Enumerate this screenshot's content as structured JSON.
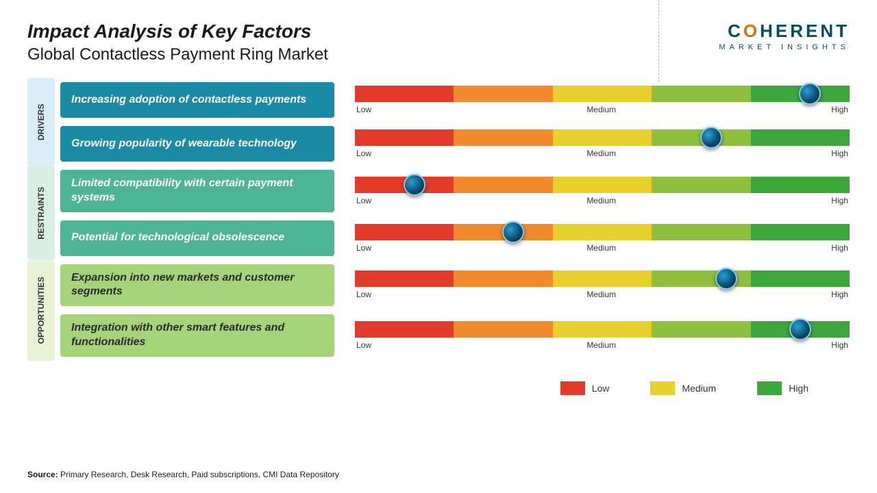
{
  "title": "Impact Analysis of Key Factors",
  "subtitle": "Global Contactless Payment Ring Market",
  "logo": {
    "brand": "COHERENT",
    "tagline": "MARKET INSIGHTS"
  },
  "scale": {
    "segment_colors": [
      "#e23b2b",
      "#f08a2c",
      "#e8d02e",
      "#8fbf3f",
      "#3da63d"
    ],
    "labels": {
      "low": "Low",
      "medium": "Medium",
      "high": "High"
    },
    "marker_color": "#0c5a80"
  },
  "categories": [
    {
      "name": "DRIVERS",
      "label_bg": "#d9eef6",
      "factor_bg": "#1b8aa5",
      "factor_text": "#ffffff",
      "rows": [
        {
          "text": "Increasing adoption of contactless payments",
          "marker_pct": 92
        },
        {
          "text": "Growing popularity of wearable technology",
          "marker_pct": 72
        }
      ]
    },
    {
      "name": "RESTRAINTS",
      "label_bg": "#d9efe5",
      "factor_bg": "#4db593",
      "factor_text": "#ffffff",
      "rows": [
        {
          "text": "Limited compatibility with certain payment systems",
          "marker_pct": 12
        },
        {
          "text": "Potential for technological obsolescence",
          "marker_pct": 32
        }
      ]
    },
    {
      "name": "OPPORTUNITIES",
      "label_bg": "#e8f3d6",
      "factor_bg": "#a6d47a",
      "factor_text": "#2a2a2a",
      "rows": [
        {
          "text": "Expansion into new markets and customer segments",
          "marker_pct": 75
        },
        {
          "text": "Integration with other smart features and functionalities",
          "marker_pct": 90
        }
      ]
    }
  ],
  "legend": [
    {
      "label": "Low",
      "color": "#e23b2b"
    },
    {
      "label": "Medium",
      "color": "#e8d02e"
    },
    {
      "label": "High",
      "color": "#3da63d"
    }
  ],
  "source": {
    "prefix": "Source:",
    "text": "Primary Research, Desk Research, Paid subscriptions, CMI Data Repository"
  }
}
